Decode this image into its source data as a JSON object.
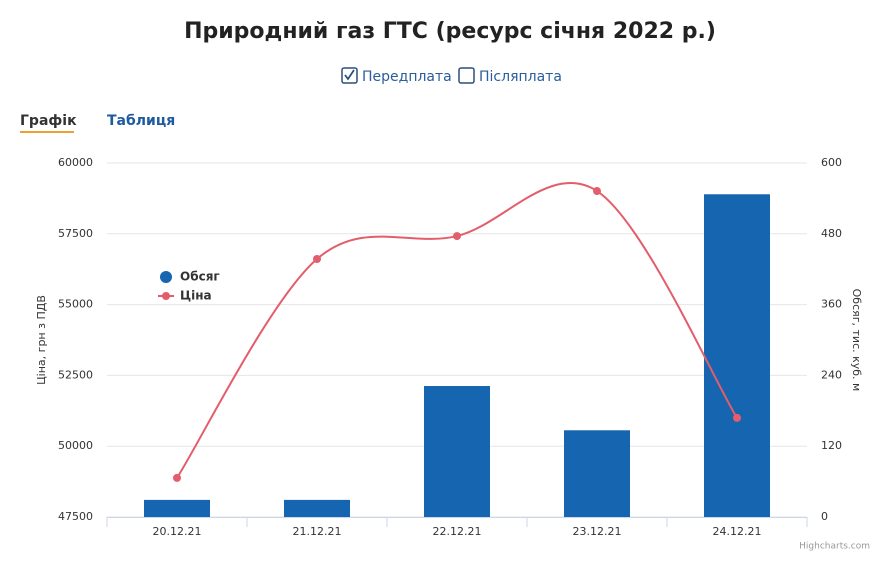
{
  "title": "Природний газ ГТС (ресурс січня 2022 р.)",
  "options": [
    {
      "label": "Передплата",
      "checked": true
    },
    {
      "label": "Післяплата",
      "checked": false
    }
  ],
  "tabs": [
    "Графік",
    "Таблиця"
  ],
  "credits": "Highcharts.com",
  "chart_data": {
    "type": "combo",
    "categories": [
      "20.12.21",
      "21.12.21",
      "22.12.21",
      "23.12.21",
      "24.12.21"
    ],
    "series": [
      {
        "name": "Обсяг",
        "type": "bar",
        "color": "#1565b0",
        "axis": "y2",
        "values": [
          29,
          29,
          222,
          147,
          547
        ]
      },
      {
        "name": "Ціна",
        "type": "line",
        "color": "#e35d6a",
        "values": [
          48880,
          56610,
          57420,
          59010,
          51000
        ]
      }
    ],
    "ylabel": "Ціна, грн з ПДВ",
    "y2label": "Обсяг, тис. куб. м",
    "ylim": [
      47500,
      60000
    ],
    "yticks": [
      47500,
      50000,
      52500,
      55000,
      57500,
      60000
    ],
    "y2lim": [
      0,
      600
    ],
    "y2ticks": [
      0,
      120,
      240,
      360,
      480,
      600
    ],
    "grid": true,
    "legend": "left"
  }
}
